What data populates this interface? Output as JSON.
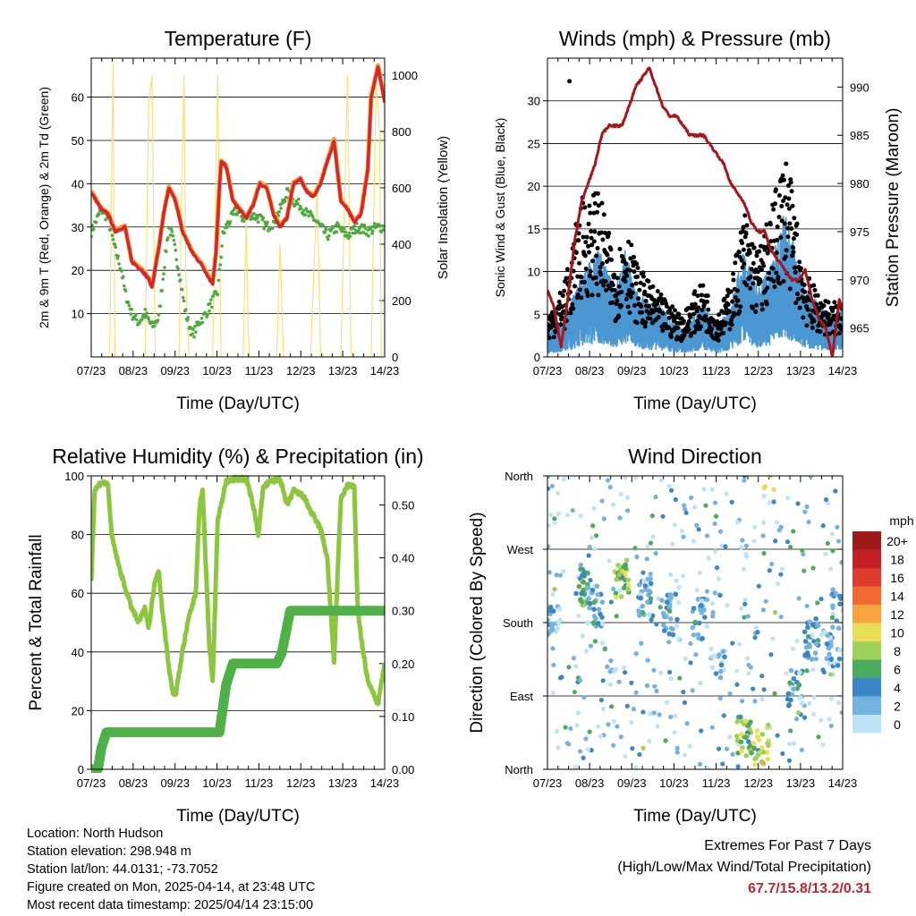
{
  "x_ticks": [
    "07/23",
    "08/23",
    "09/23",
    "10/23",
    "11/23",
    "12/23",
    "13/23",
    "14/23"
  ],
  "chart_data": [
    {
      "id": "temperature",
      "type": "line",
      "title": "Temperature (F)",
      "xlabel": "Time (Day/UTC)",
      "ylabel": "2m & 9m T (Red, Orange) & 2m Td (Green)",
      "y2label": "Solar Insolation (Yellow)",
      "ylim": [
        0,
        69
      ],
      "y2lim": [
        0,
        1060
      ],
      "yticks": [
        10,
        20,
        30,
        40,
        50,
        60
      ],
      "y2ticks": [
        0,
        200,
        400,
        600,
        800,
        1000
      ],
      "colors": {
        "temp": "#d62728",
        "temp9m": "#f59d3d",
        "dewpoint": "#4daa3c",
        "solar": "#f6e27a"
      },
      "temp": [
        [
          0,
          38
        ],
        [
          0.3,
          34
        ],
        [
          0.5,
          33
        ],
        [
          0.7,
          29
        ],
        [
          1.0,
          30
        ],
        [
          1.2,
          22
        ],
        [
          1.5,
          20
        ],
        [
          1.7,
          18
        ],
        [
          1.8,
          16
        ],
        [
          2.0,
          25
        ],
        [
          2.15,
          33
        ],
        [
          2.3,
          39
        ],
        [
          2.5,
          36
        ],
        [
          2.7,
          29
        ],
        [
          3.0,
          24
        ],
        [
          3.3,
          21
        ],
        [
          3.5,
          18
        ],
        [
          3.6,
          17
        ],
        [
          3.7,
          24
        ],
        [
          3.8,
          39
        ],
        [
          3.85,
          45
        ],
        [
          4.0,
          44
        ],
        [
          4.2,
          36
        ],
        [
          4.4,
          34
        ],
        [
          4.6,
          32
        ],
        [
          4.8,
          35
        ],
        [
          5.0,
          40
        ],
        [
          5.2,
          39
        ],
        [
          5.4,
          33
        ],
        [
          5.6,
          30
        ],
        [
          5.8,
          32
        ],
        [
          6.0,
          40
        ],
        [
          6.2,
          41
        ],
        [
          6.4,
          38
        ],
        [
          6.6,
          37
        ],
        [
          6.8,
          40
        ],
        [
          7.0,
          45
        ],
        [
          7.2,
          50
        ],
        [
          7.4,
          36
        ],
        [
          7.6,
          34
        ],
        [
          7.8,
          31
        ],
        [
          8.0,
          33
        ],
        [
          8.2,
          43
        ],
        [
          8.3,
          60
        ],
        [
          8.5,
          67
        ],
        [
          8.7,
          59
        ]
      ],
      "dewpoint": [
        [
          0,
          29
        ],
        [
          0.3,
          34
        ],
        [
          0.5,
          32
        ],
        [
          0.7,
          25
        ],
        [
          0.9,
          20
        ],
        [
          1.0,
          15
        ],
        [
          1.2,
          10
        ],
        [
          1.4,
          8
        ],
        [
          1.6,
          10
        ],
        [
          1.8,
          7
        ],
        [
          2.0,
          9
        ],
        [
          2.15,
          20
        ],
        [
          2.3,
          30
        ],
        [
          2.4,
          28
        ],
        [
          2.6,
          20
        ],
        [
          2.8,
          10
        ],
        [
          3.0,
          5
        ],
        [
          3.2,
          8
        ],
        [
          3.4,
          10
        ],
        [
          3.6,
          13
        ],
        [
          3.75,
          15
        ],
        [
          3.9,
          28
        ],
        [
          4.0,
          30
        ],
        [
          4.3,
          34
        ],
        [
          4.5,
          32
        ],
        [
          4.7,
          33
        ],
        [
          5.0,
          32
        ],
        [
          5.2,
          30
        ],
        [
          5.4,
          31
        ],
        [
          5.6,
          34
        ],
        [
          5.8,
          38
        ],
        [
          6.0,
          36
        ],
        [
          6.2,
          35
        ],
        [
          6.4,
          33
        ],
        [
          6.6,
          32
        ],
        [
          6.8,
          30
        ],
        [
          7.0,
          28
        ],
        [
          7.3,
          30
        ],
        [
          7.6,
          28
        ],
        [
          7.9,
          30
        ],
        [
          8.2,
          29
        ],
        [
          8.5,
          30
        ],
        [
          8.7,
          30
        ]
      ],
      "solar": [
        [
          0,
          0
        ],
        [
          0.55,
          0
        ],
        [
          0.6,
          600
        ],
        [
          0.65,
          1040
        ],
        [
          0.7,
          0
        ],
        [
          1.6,
          0
        ],
        [
          1.7,
          900
        ],
        [
          1.8,
          1000
        ],
        [
          1.85,
          500
        ],
        [
          1.9,
          0
        ],
        [
          2.6,
          0
        ],
        [
          2.7,
          720
        ],
        [
          2.75,
          1000
        ],
        [
          2.8,
          300
        ],
        [
          2.9,
          0
        ],
        [
          3.6,
          0
        ],
        [
          3.75,
          1000
        ],
        [
          3.85,
          0
        ],
        [
          4.5,
          0
        ],
        [
          4.6,
          500
        ],
        [
          4.65,
          100
        ],
        [
          4.7,
          0
        ],
        [
          5.5,
          0
        ],
        [
          5.6,
          400
        ],
        [
          5.7,
          0
        ],
        [
          6.5,
          0
        ],
        [
          6.7,
          600
        ],
        [
          6.8,
          0
        ],
        [
          7.4,
          0
        ],
        [
          7.6,
          1000
        ],
        [
          7.7,
          0
        ],
        [
          8.3,
          0
        ],
        [
          8.45,
          1000
        ],
        [
          8.55,
          800
        ],
        [
          8.6,
          0
        ]
      ]
    },
    {
      "id": "winds",
      "type": "scatter",
      "title": "Winds (mph) & Pressure (mb)",
      "xlabel": "Time (Day/UTC)",
      "ylabel": "Sonic Wind & Gust (Blue, Black)",
      "y2label": "Station Pressure (Maroon)",
      "ylim": [
        0,
        35
      ],
      "y2lim": [
        962,
        993
      ],
      "yticks": [
        0,
        5,
        10,
        15,
        20,
        25,
        30
      ],
      "y2ticks": [
        965,
        970,
        975,
        980,
        985,
        990
      ],
      "colors": {
        "wind": "#4a97d2",
        "gust": "#000000",
        "pressure": "#a8151b"
      },
      "pressure": [
        [
          0,
          969
        ],
        [
          0.2,
          967
        ],
        [
          0.4,
          963
        ],
        [
          0.6,
          968
        ],
        [
          0.8,
          974
        ],
        [
          1.0,
          978
        ],
        [
          1.2,
          980
        ],
        [
          1.4,
          982
        ],
        [
          1.6,
          985
        ],
        [
          1.8,
          986
        ],
        [
          2.0,
          986
        ],
        [
          2.2,
          986
        ],
        [
          2.4,
          988
        ],
        [
          2.6,
          990
        ],
        [
          2.8,
          991
        ],
        [
          3.0,
          992
        ],
        [
          3.2,
          990
        ],
        [
          3.4,
          988
        ],
        [
          3.6,
          987
        ],
        [
          3.8,
          987
        ],
        [
          4.0,
          986
        ],
        [
          4.2,
          985
        ],
        [
          4.4,
          985
        ],
        [
          4.6,
          985
        ],
        [
          4.8,
          984
        ],
        [
          5.0,
          983
        ],
        [
          5.2,
          982
        ],
        [
          5.4,
          980
        ],
        [
          5.6,
          979
        ],
        [
          5.8,
          978
        ],
        [
          6.0,
          976
        ],
        [
          6.2,
          975
        ],
        [
          6.4,
          975
        ],
        [
          6.6,
          973
        ],
        [
          6.8,
          972
        ],
        [
          7.0,
          971
        ],
        [
          7.2,
          970
        ],
        [
          7.4,
          970
        ],
        [
          7.6,
          971
        ],
        [
          7.8,
          968
        ],
        [
          8.0,
          966
        ],
        [
          8.2,
          965
        ],
        [
          8.4,
          962
        ],
        [
          8.6,
          968
        ],
        [
          8.7,
          967
        ]
      ],
      "wind": [
        [
          0,
          2
        ],
        [
          0.5,
          3
        ],
        [
          1.0,
          6
        ],
        [
          1.5,
          8
        ],
        [
          2.0,
          5
        ],
        [
          2.3,
          8
        ],
        [
          2.6,
          5
        ],
        [
          3.0,
          4
        ],
        [
          3.3,
          4
        ],
        [
          3.6,
          3
        ],
        [
          4.0,
          2
        ],
        [
          4.3,
          3
        ],
        [
          4.6,
          4
        ],
        [
          5.0,
          2
        ],
        [
          5.4,
          4
        ],
        [
          5.8,
          8
        ],
        [
          6.2,
          5
        ],
        [
          6.6,
          7
        ],
        [
          7.0,
          11
        ],
        [
          7.3,
          8
        ],
        [
          7.6,
          5
        ],
        [
          8.0,
          4
        ],
        [
          8.4,
          3
        ],
        [
          8.7,
          4
        ]
      ],
      "gust": [
        [
          0,
          4
        ],
        [
          0.5,
          7
        ],
        [
          1.0,
          15
        ],
        [
          1.5,
          16
        ],
        [
          2.0,
          9
        ],
        [
          2.3,
          13
        ],
        [
          2.6,
          9
        ],
        [
          3.0,
          7
        ],
        [
          3.3,
          6
        ],
        [
          3.6,
          5
        ],
        [
          4.0,
          4
        ],
        [
          4.3,
          6
        ],
        [
          4.6,
          7
        ],
        [
          5.0,
          4
        ],
        [
          5.4,
          7
        ],
        [
          5.8,
          14
        ],
        [
          6.2,
          10
        ],
        [
          6.6,
          14
        ],
        [
          7.0,
          20
        ],
        [
          7.3,
          14
        ],
        [
          7.6,
          8
        ],
        [
          8.0,
          6
        ],
        [
          8.4,
          5
        ],
        [
          8.7,
          6
        ]
      ]
    },
    {
      "id": "humidity",
      "type": "line",
      "title": "Relative Humidity (%) & Precipitation (in)",
      "xlabel": "Time (Day/UTC)",
      "ylabel": "Percent & Total Rainfall",
      "ylim": [
        0,
        100
      ],
      "y2lim": [
        0,
        0.555
      ],
      "yticks": [
        0,
        20,
        40,
        60,
        80,
        100
      ],
      "y2ticks": [
        0.0,
        0.1,
        0.2,
        0.3,
        0.4,
        0.5
      ],
      "colors": {
        "rh": "#8cc63f",
        "precip": "#4eb046"
      },
      "rh": [
        [
          0,
          64
        ],
        [
          0.1,
          95
        ],
        [
          0.3,
          98
        ],
        [
          0.5,
          97
        ],
        [
          0.6,
          80
        ],
        [
          0.8,
          70
        ],
        [
          1.0,
          62
        ],
        [
          1.2,
          55
        ],
        [
          1.4,
          50
        ],
        [
          1.6,
          55
        ],
        [
          1.7,
          48
        ],
        [
          1.9,
          65
        ],
        [
          2.0,
          68
        ],
        [
          2.1,
          55
        ],
        [
          2.3,
          35
        ],
        [
          2.4,
          27
        ],
        [
          2.5,
          25
        ],
        [
          2.7,
          40
        ],
        [
          2.9,
          52
        ],
        [
          3.1,
          60
        ],
        [
          3.2,
          88
        ],
        [
          3.3,
          96
        ],
        [
          3.5,
          42
        ],
        [
          3.6,
          30
        ],
        [
          3.75,
          85
        ],
        [
          4.0,
          98
        ],
        [
          4.3,
          99
        ],
        [
          4.6,
          99
        ],
        [
          4.8,
          90
        ],
        [
          4.95,
          80
        ],
        [
          5.1,
          96
        ],
        [
          5.3,
          98
        ],
        [
          5.6,
          99
        ],
        [
          5.8,
          90
        ],
        [
          6.0,
          95
        ],
        [
          6.3,
          93
        ],
        [
          6.5,
          88
        ],
        [
          6.8,
          82
        ],
        [
          7.0,
          72
        ],
        [
          7.15,
          45
        ],
        [
          7.2,
          37
        ],
        [
          7.4,
          92
        ],
        [
          7.6,
          97
        ],
        [
          7.8,
          96
        ],
        [
          7.9,
          55
        ],
        [
          8.0,
          45
        ],
        [
          8.2,
          30
        ],
        [
          8.4,
          25
        ],
        [
          8.5,
          22
        ],
        [
          8.7,
          36
        ]
      ],
      "precip": [
        [
          0,
          0
        ],
        [
          0.2,
          0
        ],
        [
          0.3,
          0.04
        ],
        [
          0.45,
          0.07
        ],
        [
          0.6,
          0.07
        ],
        [
          1.0,
          0.07
        ],
        [
          1.5,
          0.07
        ],
        [
          2.0,
          0.07
        ],
        [
          2.5,
          0.07
        ],
        [
          3.0,
          0.07
        ],
        [
          3.5,
          0.07
        ],
        [
          3.8,
          0.07
        ],
        [
          4.0,
          0.16
        ],
        [
          4.2,
          0.2
        ],
        [
          5.0,
          0.2
        ],
        [
          5.5,
          0.2
        ],
        [
          5.65,
          0.22
        ],
        [
          5.9,
          0.3
        ],
        [
          6.5,
          0.3
        ],
        [
          7.0,
          0.3
        ],
        [
          8.0,
          0.3
        ],
        [
          8.7,
          0.3
        ]
      ]
    },
    {
      "id": "direction",
      "type": "scatter",
      "title": "Wind Direction",
      "xlabel": "Time (Day/UTC)",
      "ylabel": "Direction (Colored By Speed)",
      "ylim": [
        0,
        360
      ],
      "yticks": [
        "North",
        "East",
        "South",
        "West",
        "North"
      ],
      "legend_title": "mph",
      "legend_labels": [
        "20+",
        "18",
        "16",
        "14",
        "12",
        "10",
        "8",
        "6",
        "4",
        "2",
        "0"
      ],
      "legend_colors": [
        "#9c1a1c",
        "#c42127",
        "#e03a2e",
        "#f06a32",
        "#f7a340",
        "#e9df56",
        "#9ed05a",
        "#4cab5c",
        "#3a86c6",
        "#74b2e0",
        "#bfe2f7"
      ],
      "clusters": [
        {
          "x": 0.15,
          "dir": 180,
          "spd": 2,
          "n": 30
        },
        {
          "x": 1.0,
          "dir": 225,
          "spd": 6,
          "n": 30
        },
        {
          "x": 1.4,
          "dir": 200,
          "spd": 3,
          "n": 25
        },
        {
          "x": 2.2,
          "dir": 235,
          "spd": 7,
          "n": 30
        },
        {
          "x": 2.9,
          "dir": 210,
          "spd": 3,
          "n": 25
        },
        {
          "x": 3.6,
          "dir": 190,
          "spd": 3,
          "n": 25
        },
        {
          "x": 4.5,
          "dir": 185,
          "spd": 2,
          "n": 20
        },
        {
          "x": 5.0,
          "dir": 120,
          "spd": 2,
          "n": 15
        },
        {
          "x": 5.8,
          "dir": 40,
          "spd": 7,
          "n": 35
        },
        {
          "x": 6.3,
          "dir": 30,
          "spd": 9,
          "n": 25
        },
        {
          "x": 6.5,
          "dir": 355,
          "spd": 11,
          "n": 8
        },
        {
          "x": 7.3,
          "dir": 100,
          "spd": 3,
          "n": 25
        },
        {
          "x": 7.8,
          "dir": 160,
          "spd": 3,
          "n": 25
        },
        {
          "x": 8.4,
          "dir": 150,
          "spd": 2,
          "n": 25
        },
        {
          "x": 8.6,
          "dir": 200,
          "spd": 4,
          "n": 15
        }
      ]
    }
  ],
  "footer": {
    "location": "Location: North Hudson",
    "elevation": "Station elevation: 298.948 m",
    "latlon": "Station lat/lon: 44.0131; -73.7052",
    "created": "Figure created on Mon, 2025-04-14, at 23:48 UTC",
    "recent": "Most recent data timestamp: 2025/04/14 23:15:00",
    "extremes_title": "Extremes For Past 7 Days",
    "extremes_desc": "(High/Low/Max Wind/Total Precipitation)",
    "extremes_values": "67.7/15.8/13.2/0.31"
  }
}
